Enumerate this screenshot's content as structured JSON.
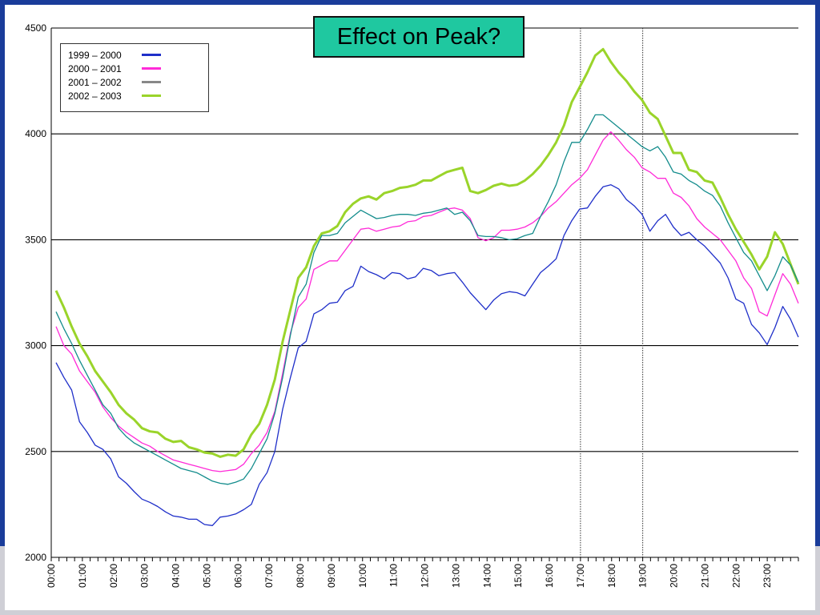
{
  "chart_data": {
    "type": "line",
    "title": "Effect on Peak?",
    "xlabel": "",
    "ylabel": "",
    "ylim": [
      2000,
      4500
    ],
    "yticks": [
      2000,
      2500,
      3000,
      3500,
      4000,
      4500
    ],
    "xtick_labels": [
      "00:00",
      "01:00",
      "02:00",
      "03:00",
      "04:00",
      "05:00",
      "06:00",
      "07:00",
      "08:00",
      "09:00",
      "10:00",
      "11:00",
      "12:00",
      "13:00",
      "14:00",
      "15:00",
      "16:00",
      "17:00",
      "18:00",
      "19:00",
      "20:00",
      "21:00",
      "22:00",
      "23:00"
    ],
    "x_step": "half-hour",
    "reference_lines": [
      "17:00",
      "19:00"
    ],
    "grid": "horizontal",
    "legend_position": "top-left",
    "series": [
      {
        "name": "1999 – 2000",
        "color": "#1f2fc9",
        "width": 1.3,
        "values": [
          2920,
          2850,
          2790,
          2640,
          2590,
          2530,
          2510,
          2465,
          2380,
          2350,
          2310,
          2275,
          2260,
          2240,
          2215,
          2195,
          2190,
          2180,
          2180,
          2155,
          2150,
          2190,
          2195,
          2205,
          2225,
          2250,
          2345,
          2400,
          2500,
          2700,
          2850,
          2990,
          3020,
          3150,
          3170,
          3200,
          3205,
          3260,
          3280,
          3375,
          3350,
          3335,
          3315,
          3345,
          3340,
          3315,
          3325,
          3365,
          3355,
          3330,
          3340,
          3345,
          3300,
          3250,
          3210,
          3170,
          3215,
          3245,
          3255,
          3250,
          3235,
          3290,
          3345,
          3375,
          3410,
          3520,
          3590,
          3645,
          3650,
          3705,
          3750,
          3760,
          3740,
          3690,
          3660,
          3620,
          3540,
          3590,
          3620,
          3560,
          3520,
          3535,
          3500,
          3470,
          3430,
          3390,
          3320,
          3220,
          3200,
          3100,
          3060,
          3005,
          3085,
          3185,
          3125,
          3040
        ]
      },
      {
        "name": "2000 – 2001",
        "color": "#ff2ad8",
        "width": 1.3,
        "values": [
          3090,
          3000,
          2960,
          2880,
          2830,
          2780,
          2710,
          2660,
          2620,
          2590,
          2565,
          2540,
          2525,
          2500,
          2480,
          2460,
          2450,
          2440,
          2430,
          2420,
          2410,
          2405,
          2410,
          2415,
          2440,
          2490,
          2530,
          2590,
          2690,
          2870,
          3060,
          3180,
          3220,
          3360,
          3380,
          3400,
          3400,
          3450,
          3500,
          3550,
          3555,
          3540,
          3550,
          3560,
          3565,
          3585,
          3590,
          3610,
          3615,
          3630,
          3645,
          3650,
          3640,
          3600,
          3510,
          3495,
          3510,
          3545,
          3545,
          3550,
          3560,
          3580,
          3610,
          3650,
          3680,
          3720,
          3760,
          3790,
          3830,
          3900,
          3970,
          4010,
          3970,
          3925,
          3890,
          3840,
          3820,
          3790,
          3790,
          3720,
          3700,
          3660,
          3600,
          3560,
          3530,
          3500,
          3450,
          3400,
          3320,
          3270,
          3160,
          3140,
          3240,
          3340,
          3290,
          3200
        ]
      },
      {
        "name": "2001 – 2002",
        "color": "#888888",
        "width": 1.6,
        "values": []
      },
      {
        "name": "2002 – 2003",
        "color": "#9ad42a",
        "width": 3,
        "values": [
          3260,
          3180,
          3090,
          3010,
          2950,
          2880,
          2830,
          2780,
          2720,
          2680,
          2650,
          2610,
          2595,
          2590,
          2560,
          2545,
          2550,
          2520,
          2510,
          2495,
          2490,
          2475,
          2485,
          2480,
          2510,
          2580,
          2630,
          2720,
          2840,
          3020,
          3170,
          3320,
          3370,
          3470,
          3530,
          3540,
          3565,
          3630,
          3670,
          3695,
          3705,
          3690,
          3720,
          3730,
          3745,
          3750,
          3760,
          3780,
          3780,
          3800,
          3820,
          3830,
          3840,
          3730,
          3720,
          3735,
          3755,
          3765,
          3755,
          3760,
          3780,
          3810,
          3850,
          3900,
          3960,
          4040,
          4150,
          4220,
          4290,
          4370,
          4400,
          4340,
          4290,
          4250,
          4200,
          4160,
          4100,
          4070,
          3990,
          3910,
          3910,
          3830,
          3820,
          3780,
          3770,
          3700,
          3620,
          3550,
          3490,
          3430,
          3360,
          3420,
          3535,
          3480,
          3385,
          3290
        ]
      },
      {
        "name": "",
        "color": "#138c8c",
        "width": 1.3,
        "values": [
          3160,
          3080,
          3010,
          2930,
          2860,
          2790,
          2720,
          2680,
          2610,
          2570,
          2540,
          2520,
          2500,
          2480,
          2460,
          2440,
          2420,
          2410,
          2400,
          2380,
          2360,
          2350,
          2345,
          2355,
          2370,
          2420,
          2490,
          2560,
          2680,
          2850,
          3050,
          3230,
          3290,
          3440,
          3520,
          3520,
          3530,
          3580,
          3610,
          3640,
          3620,
          3600,
          3605,
          3615,
          3620,
          3620,
          3615,
          3625,
          3630,
          3640,
          3650,
          3620,
          3630,
          3590,
          3520,
          3515,
          3515,
          3510,
          3500,
          3505,
          3520,
          3530,
          3610,
          3680,
          3760,
          3870,
          3960,
          3960,
          4020,
          4090,
          4090,
          4060,
          4030,
          4000,
          3970,
          3940,
          3920,
          3940,
          3890,
          3820,
          3810,
          3780,
          3760,
          3730,
          3710,
          3660,
          3580,
          3510,
          3440,
          3400,
          3330,
          3260,
          3330,
          3420,
          3380,
          3300
        ]
      }
    ]
  }
}
